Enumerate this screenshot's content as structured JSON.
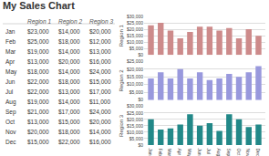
{
  "chart_data": [
    {
      "type": "table",
      "title": "My Sales Chart",
      "categories": [
        "Jan",
        "Feb",
        "Mar",
        "Apr",
        "May",
        "Jun",
        "Jul",
        "Aug",
        "Sep",
        "Oct",
        "Nov",
        "Dec"
      ],
      "series": [
        {
          "name": "Region 1",
          "values": [
            23000,
            25000,
            19000,
            13000,
            18000,
            22000,
            22000,
            19000,
            21000,
            13000,
            20000,
            15000
          ],
          "value_labels": [
            "$23,000",
            "$25,000",
            "$19,000",
            "$13,000",
            "$18,000",
            "$22,000",
            "$22,000",
            "$19,000",
            "$21,000",
            "$13,000",
            "$20,000",
            "$15,000"
          ]
        },
        {
          "name": "Region 2",
          "values": [
            14000,
            18000,
            14000,
            20000,
            14000,
            18000,
            13000,
            14000,
            17000,
            15000,
            18000,
            22000
          ],
          "value_labels": [
            "$14,000",
            "$18,000",
            "$14,000",
            "$20,000",
            "$14,000",
            "$18,000",
            "$13,000",
            "$14,000",
            "$17,000",
            "$15,000",
            "$18,000",
            "$22,000"
          ]
        },
        {
          "name": "Region 3",
          "values": [
            20000,
            12000,
            13000,
            16000,
            24000,
            15000,
            17000,
            11000,
            24000,
            20000,
            14000,
            16000
          ],
          "value_labels": [
            "$20,000",
            "$12,000",
            "$13,000",
            "$16,000",
            "$24,000",
            "$15,000",
            "$17,000",
            "$11,000",
            "$24,000",
            "$20,000",
            "$14,000",
            "$16,000"
          ]
        }
      ]
    },
    {
      "type": "bar",
      "ylabel": "Region 1",
      "categories": [
        "Jan",
        "Feb",
        "Mar",
        "Apr",
        "May",
        "Jun",
        "Jul",
        "Aug",
        "Sep",
        "Oct",
        "Nov",
        "Dec"
      ],
      "values": [
        23000,
        25000,
        19000,
        13000,
        18000,
        22000,
        22000,
        19000,
        21000,
        13000,
        20000,
        15000
      ],
      "color": "#cd8b8b",
      "ylim": [
        0,
        30000
      ],
      "yticks": [
        {
          "value": 0,
          "label": "$0"
        },
        {
          "value": 5000,
          "label": "$5,000"
        },
        {
          "value": 10000,
          "label": "$10,000"
        },
        {
          "value": 15000,
          "label": "$15,000"
        },
        {
          "value": 20000,
          "label": "$20,000"
        },
        {
          "value": 25000,
          "label": "$25,000"
        },
        {
          "value": 30000,
          "label": "$30,000"
        }
      ],
      "grid": true,
      "tick_labels": "y"
    },
    {
      "type": "bar",
      "ylabel": "Region 2",
      "categories": [
        "Jan",
        "Feb",
        "Mar",
        "Apr",
        "May",
        "Jun",
        "Jul",
        "Aug",
        "Sep",
        "Oct",
        "Nov",
        "Dec"
      ],
      "values": [
        14000,
        18000,
        14000,
        20000,
        14000,
        18000,
        13000,
        14000,
        17000,
        15000,
        18000,
        22000
      ],
      "color": "#9999dd",
      "ylim": [
        0,
        25000
      ],
      "yticks": [
        {
          "value": 0,
          "label": "$0"
        },
        {
          "value": 5000,
          "label": "$5,000"
        },
        {
          "value": 10000,
          "label": "$10,000"
        },
        {
          "value": 15000,
          "label": "$15,000"
        },
        {
          "value": 20000,
          "label": "$20,000"
        },
        {
          "value": 25000,
          "label": "$25,000"
        }
      ],
      "grid": true,
      "tick_labels": "y"
    },
    {
      "type": "bar",
      "ylabel": "Region 3",
      "categories": [
        "Jan",
        "Feb",
        "Mar",
        "Apr",
        "May",
        "Jun",
        "Jul",
        "Aug",
        "Sep",
        "Oct",
        "Nov",
        "Dec"
      ],
      "values": [
        20000,
        12000,
        13000,
        16000,
        24000,
        15000,
        17000,
        11000,
        24000,
        20000,
        14000,
        16000
      ],
      "color": "#228888",
      "ylim": [
        0,
        30000
      ],
      "yticks": [
        {
          "value": 0,
          "label": "$0"
        },
        {
          "value": 5000,
          "label": "$5,000"
        },
        {
          "value": 10000,
          "label": "$10,000"
        },
        {
          "value": 15000,
          "label": "$15,000"
        },
        {
          "value": 20000,
          "label": "$20,000"
        },
        {
          "value": 25000,
          "label": "$25,000"
        },
        {
          "value": 30000,
          "label": "$30,000"
        }
      ],
      "grid": true
    }
  ]
}
